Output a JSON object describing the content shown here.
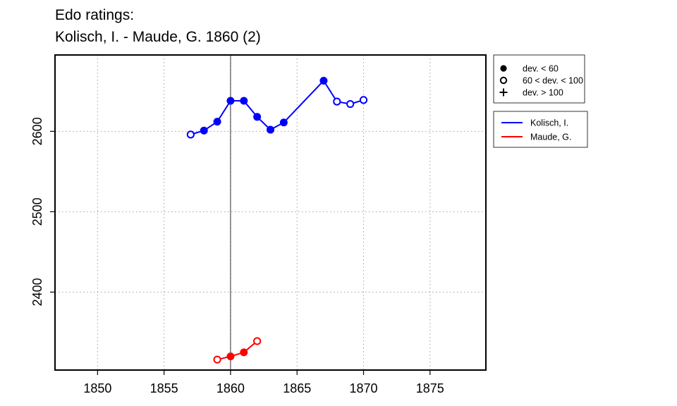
{
  "title_line1": "Edo ratings:",
  "title_line2": "Kolisch, I. - Maude, G. 1860 (2)",
  "chart_data": {
    "type": "line",
    "xlim": [
      1846.8,
      1879.2
    ],
    "ylim": [
      2303,
      2695
    ],
    "x_ticks": [
      1850,
      1855,
      1860,
      1865,
      1870,
      1875
    ],
    "y_ticks": [
      2400,
      2500,
      2600
    ],
    "grid": true,
    "vline": 1860,
    "marker_legend": [
      {
        "symbol": "filled",
        "label": "dev. < 60"
      },
      {
        "symbol": "open",
        "label": "60 < dev. < 100"
      },
      {
        "symbol": "plus",
        "label": "dev. > 100"
      }
    ],
    "series": [
      {
        "name": "Kolisch, I.",
        "color": "#0000ff",
        "points": [
          {
            "x": 1857,
            "y": 2596,
            "m": "open"
          },
          {
            "x": 1858,
            "y": 2601,
            "m": "filled"
          },
          {
            "x": 1859,
            "y": 2612,
            "m": "filled"
          },
          {
            "x": 1860,
            "y": 2638,
            "m": "filled"
          },
          {
            "x": 1861,
            "y": 2638,
            "m": "filled"
          },
          {
            "x": 1862,
            "y": 2618,
            "m": "filled"
          },
          {
            "x": 1863,
            "y": 2602,
            "m": "filled"
          },
          {
            "x": 1864,
            "y": 2611,
            "m": "filled"
          },
          {
            "x": 1867,
            "y": 2663,
            "m": "filled"
          },
          {
            "x": 1868,
            "y": 2637,
            "m": "open"
          },
          {
            "x": 1869,
            "y": 2634,
            "m": "open"
          },
          {
            "x": 1870,
            "y": 2639,
            "m": "open"
          }
        ],
        "segments": [
          [
            0,
            7
          ],
          [
            7,
            8
          ],
          [
            8,
            11
          ]
        ]
      },
      {
        "name": "Maude, G.",
        "color": "#ff0000",
        "points": [
          {
            "x": 1859,
            "y": 2316,
            "m": "open"
          },
          {
            "x": 1860,
            "y": 2320,
            "m": "filled"
          },
          {
            "x": 1861,
            "y": 2325,
            "m": "filled"
          },
          {
            "x": 1862,
            "y": 2339,
            "m": "open"
          }
        ],
        "segments": [
          [
            0,
            3
          ]
        ]
      }
    ]
  }
}
